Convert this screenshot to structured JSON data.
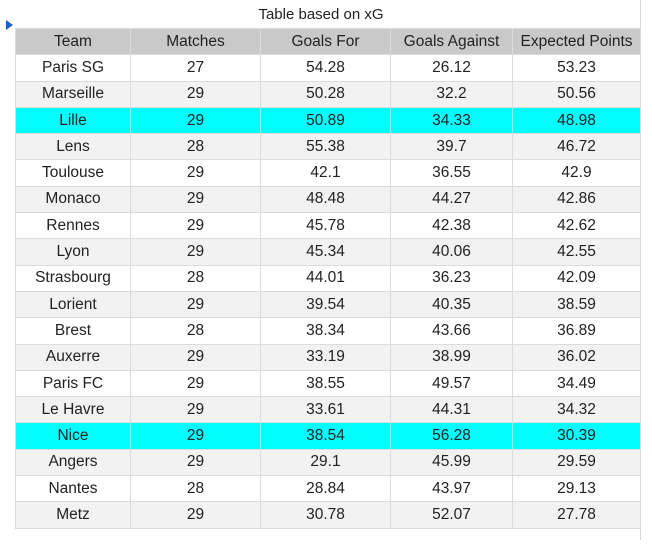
{
  "title": "Table based on xG",
  "table": {
    "header": [
      "Team",
      "Matches",
      "Goals For",
      "Goals Against",
      "Expected Points"
    ],
    "rows": [
      [
        "Paris SG",
        "27",
        "54.28",
        "26.12",
        "53.23"
      ],
      [
        "Marseille",
        "29",
        "50.28",
        "32.2",
        "50.56"
      ],
      [
        "Lille",
        "29",
        "50.89",
        "34.33",
        "48.98"
      ],
      [
        "Lens",
        "28",
        "55.38",
        "39.7",
        "46.72"
      ],
      [
        "Toulouse",
        "29",
        "42.1",
        "36.55",
        "42.9"
      ],
      [
        "Monaco",
        "29",
        "48.48",
        "44.27",
        "42.86"
      ],
      [
        "Rennes",
        "29",
        "45.78",
        "42.38",
        "42.62"
      ],
      [
        "Lyon",
        "29",
        "45.34",
        "40.06",
        "42.55"
      ],
      [
        "Strasbourg",
        "28",
        "44.01",
        "36.23",
        "42.09"
      ],
      [
        "Lorient",
        "29",
        "39.54",
        "40.35",
        "38.59"
      ],
      [
        "Brest",
        "28",
        "38.34",
        "43.66",
        "36.89"
      ],
      [
        "Auxerre",
        "29",
        "33.19",
        "38.99",
        "36.02"
      ],
      [
        "Paris FC",
        "29",
        "38.55",
        "49.57",
        "34.49"
      ],
      [
        "Le Havre",
        "29",
        "33.61",
        "44.31",
        "34.32"
      ],
      [
        "Nice",
        "29",
        "38.54",
        "56.28",
        "30.39"
      ],
      [
        "Angers",
        "29",
        "29.1",
        "45.99",
        "29.59"
      ],
      [
        "Nantes",
        "28",
        "28.84",
        "43.97",
        "29.13"
      ],
      [
        "Metz",
        "29",
        "30.78",
        "52.07",
        "27.78"
      ]
    ]
  }
}
